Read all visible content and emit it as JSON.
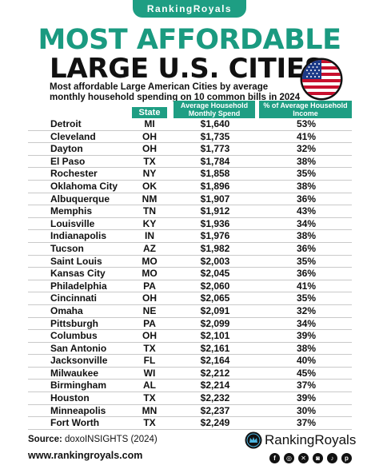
{
  "brand_top": "RankingRoyals",
  "title_line1": "MOST AFFORDABLE",
  "title_line2": "LARGE U.S. CITIES",
  "subtitle": "Most affordable Large American Cities by average monthly household spending on 10 common bills in 2024",
  "columns": {
    "state": "State",
    "spend": "Average Household Monthly Spend",
    "pct": "% of Average Household Income"
  },
  "rows": [
    {
      "city": "Detroit",
      "state": "MI",
      "spend": "$1,640",
      "pct": "53%"
    },
    {
      "city": "Cleveland",
      "state": "OH",
      "spend": "$1,735",
      "pct": "41%"
    },
    {
      "city": "Dayton",
      "state": "OH",
      "spend": "$1,773",
      "pct": "32%"
    },
    {
      "city": "El Paso",
      "state": "TX",
      "spend": "$1,784",
      "pct": "38%"
    },
    {
      "city": "Rochester",
      "state": "NY",
      "spend": "$1,858",
      "pct": "35%"
    },
    {
      "city": "Oklahoma City",
      "state": "OK",
      "spend": "$1,896",
      "pct": "38%"
    },
    {
      "city": "Albuquerque",
      "state": "NM",
      "spend": "$1,907",
      "pct": "36%"
    },
    {
      "city": "Memphis",
      "state": "TN",
      "spend": "$1,912",
      "pct": "43%"
    },
    {
      "city": "Louisville",
      "state": "KY",
      "spend": "$1,936",
      "pct": "34%"
    },
    {
      "city": "Indianapolis",
      "state": "IN",
      "spend": "$1,976",
      "pct": "38%"
    },
    {
      "city": "Tucson",
      "state": "AZ",
      "spend": "$1,982",
      "pct": "36%"
    },
    {
      "city": "Saint Louis",
      "state": "MO",
      "spend": "$2,003",
      "pct": "35%"
    },
    {
      "city": "Kansas City",
      "state": "MO",
      "spend": "$2,045",
      "pct": "36%"
    },
    {
      "city": "Philadelphia",
      "state": "PA",
      "spend": "$2,060",
      "pct": "41%"
    },
    {
      "city": "Cincinnati",
      "state": "OH",
      "spend": "$2,065",
      "pct": "35%"
    },
    {
      "city": "Omaha",
      "state": "NE",
      "spend": "$2,091",
      "pct": "32%"
    },
    {
      "city": "Pittsburgh",
      "state": "PA",
      "spend": "$2,099",
      "pct": "34%"
    },
    {
      "city": "Columbus",
      "state": "OH",
      "spend": "$2,101",
      "pct": "39%"
    },
    {
      "city": "San Antonio",
      "state": "TX",
      "spend": "$2,161",
      "pct": "38%"
    },
    {
      "city": "Jacksonville",
      "state": "FL",
      "spend": "$2,164",
      "pct": "40%"
    },
    {
      "city": "Milwaukee",
      "state": "WI",
      "spend": "$2,212",
      "pct": "45%"
    },
    {
      "city": "Birmingham",
      "state": "AL",
      "spend": "$2,214",
      "pct": "37%"
    },
    {
      "city": "Houston",
      "state": "TX",
      "spend": "$2,232",
      "pct": "39%"
    },
    {
      "city": "Minneapolis",
      "state": "MN",
      "spend": "$2,237",
      "pct": "30%"
    },
    {
      "city": "Fort Worth",
      "state": "TX",
      "spend": "$2,249",
      "pct": "37%"
    }
  ],
  "source_label": "Source:",
  "source_value": "doxoINSIGHTS (2024)",
  "url": "www.rankingroyals.com",
  "logo_text": "RankingRoyals",
  "social_icons": [
    "facebook-icon",
    "instagram-icon",
    "x-icon",
    "instagram-alt-icon",
    "tiktok-icon",
    "pinterest-icon"
  ],
  "colors": {
    "accent": "#1e9e83",
    "title": "#1a9a80"
  }
}
